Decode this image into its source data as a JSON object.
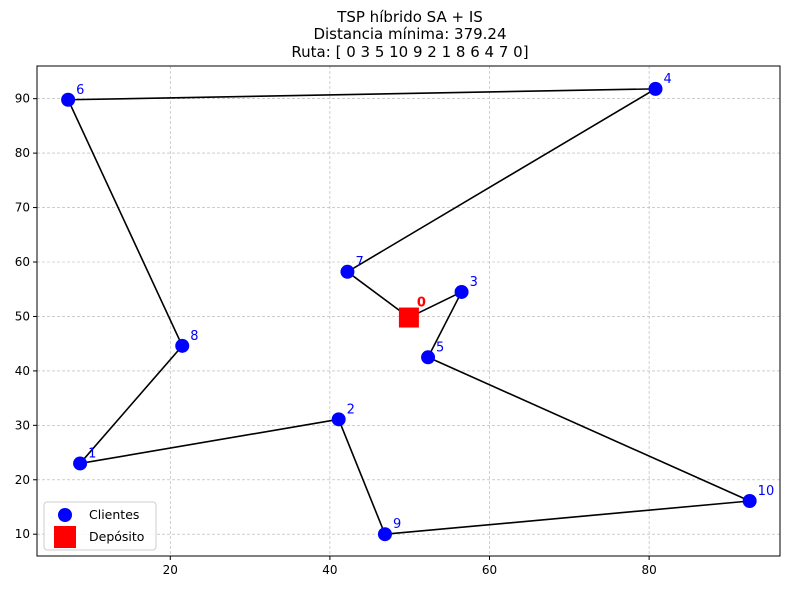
{
  "chart_data": {
    "type": "scatter",
    "title_lines": [
      "TSP híbrido SA + IS",
      "Distancia mínima: 379.24",
      "Ruta: [ 0  3  5 10  9  2  1  8  6  4  7  0]"
    ],
    "xlabel": "",
    "ylabel": "",
    "xlim": [
      3.3,
      96.4
    ],
    "ylim": [
      6.0,
      96.0
    ],
    "xticks": [
      20,
      40,
      60,
      80
    ],
    "yticks": [
      10,
      20,
      30,
      40,
      50,
      60,
      70,
      80,
      90
    ],
    "grid": true,
    "legend_position": "lower-left",
    "legend": [
      {
        "label": "Clientes",
        "marker": "circle",
        "color": "#0000ff"
      },
      {
        "label": "Depósito",
        "marker": "square",
        "color": "#ff0000"
      }
    ],
    "depot": {
      "id": "0",
      "x": 49.9,
      "y": 49.8
    },
    "clients": [
      {
        "id": "1",
        "x": 8.7,
        "y": 23.0
      },
      {
        "id": "2",
        "x": 41.1,
        "y": 31.1
      },
      {
        "id": "3",
        "x": 56.5,
        "y": 54.5
      },
      {
        "id": "4",
        "x": 80.8,
        "y": 91.8
      },
      {
        "id": "5",
        "x": 52.3,
        "y": 42.5
      },
      {
        "id": "6",
        "x": 7.2,
        "y": 89.8
      },
      {
        "id": "7",
        "x": 42.2,
        "y": 58.2
      },
      {
        "id": "8",
        "x": 21.5,
        "y": 44.6
      },
      {
        "id": "9",
        "x": 46.9,
        "y": 10.0
      },
      {
        "id": "10",
        "x": 92.6,
        "y": 16.1
      }
    ],
    "route": [
      "0",
      "3",
      "5",
      "10",
      "9",
      "2",
      "1",
      "8",
      "6",
      "4",
      "7",
      "0"
    ],
    "colors": {
      "clients": "#0000ff",
      "depot": "#ff0000",
      "route": "#000000",
      "grid": "#b0b0b0"
    }
  }
}
